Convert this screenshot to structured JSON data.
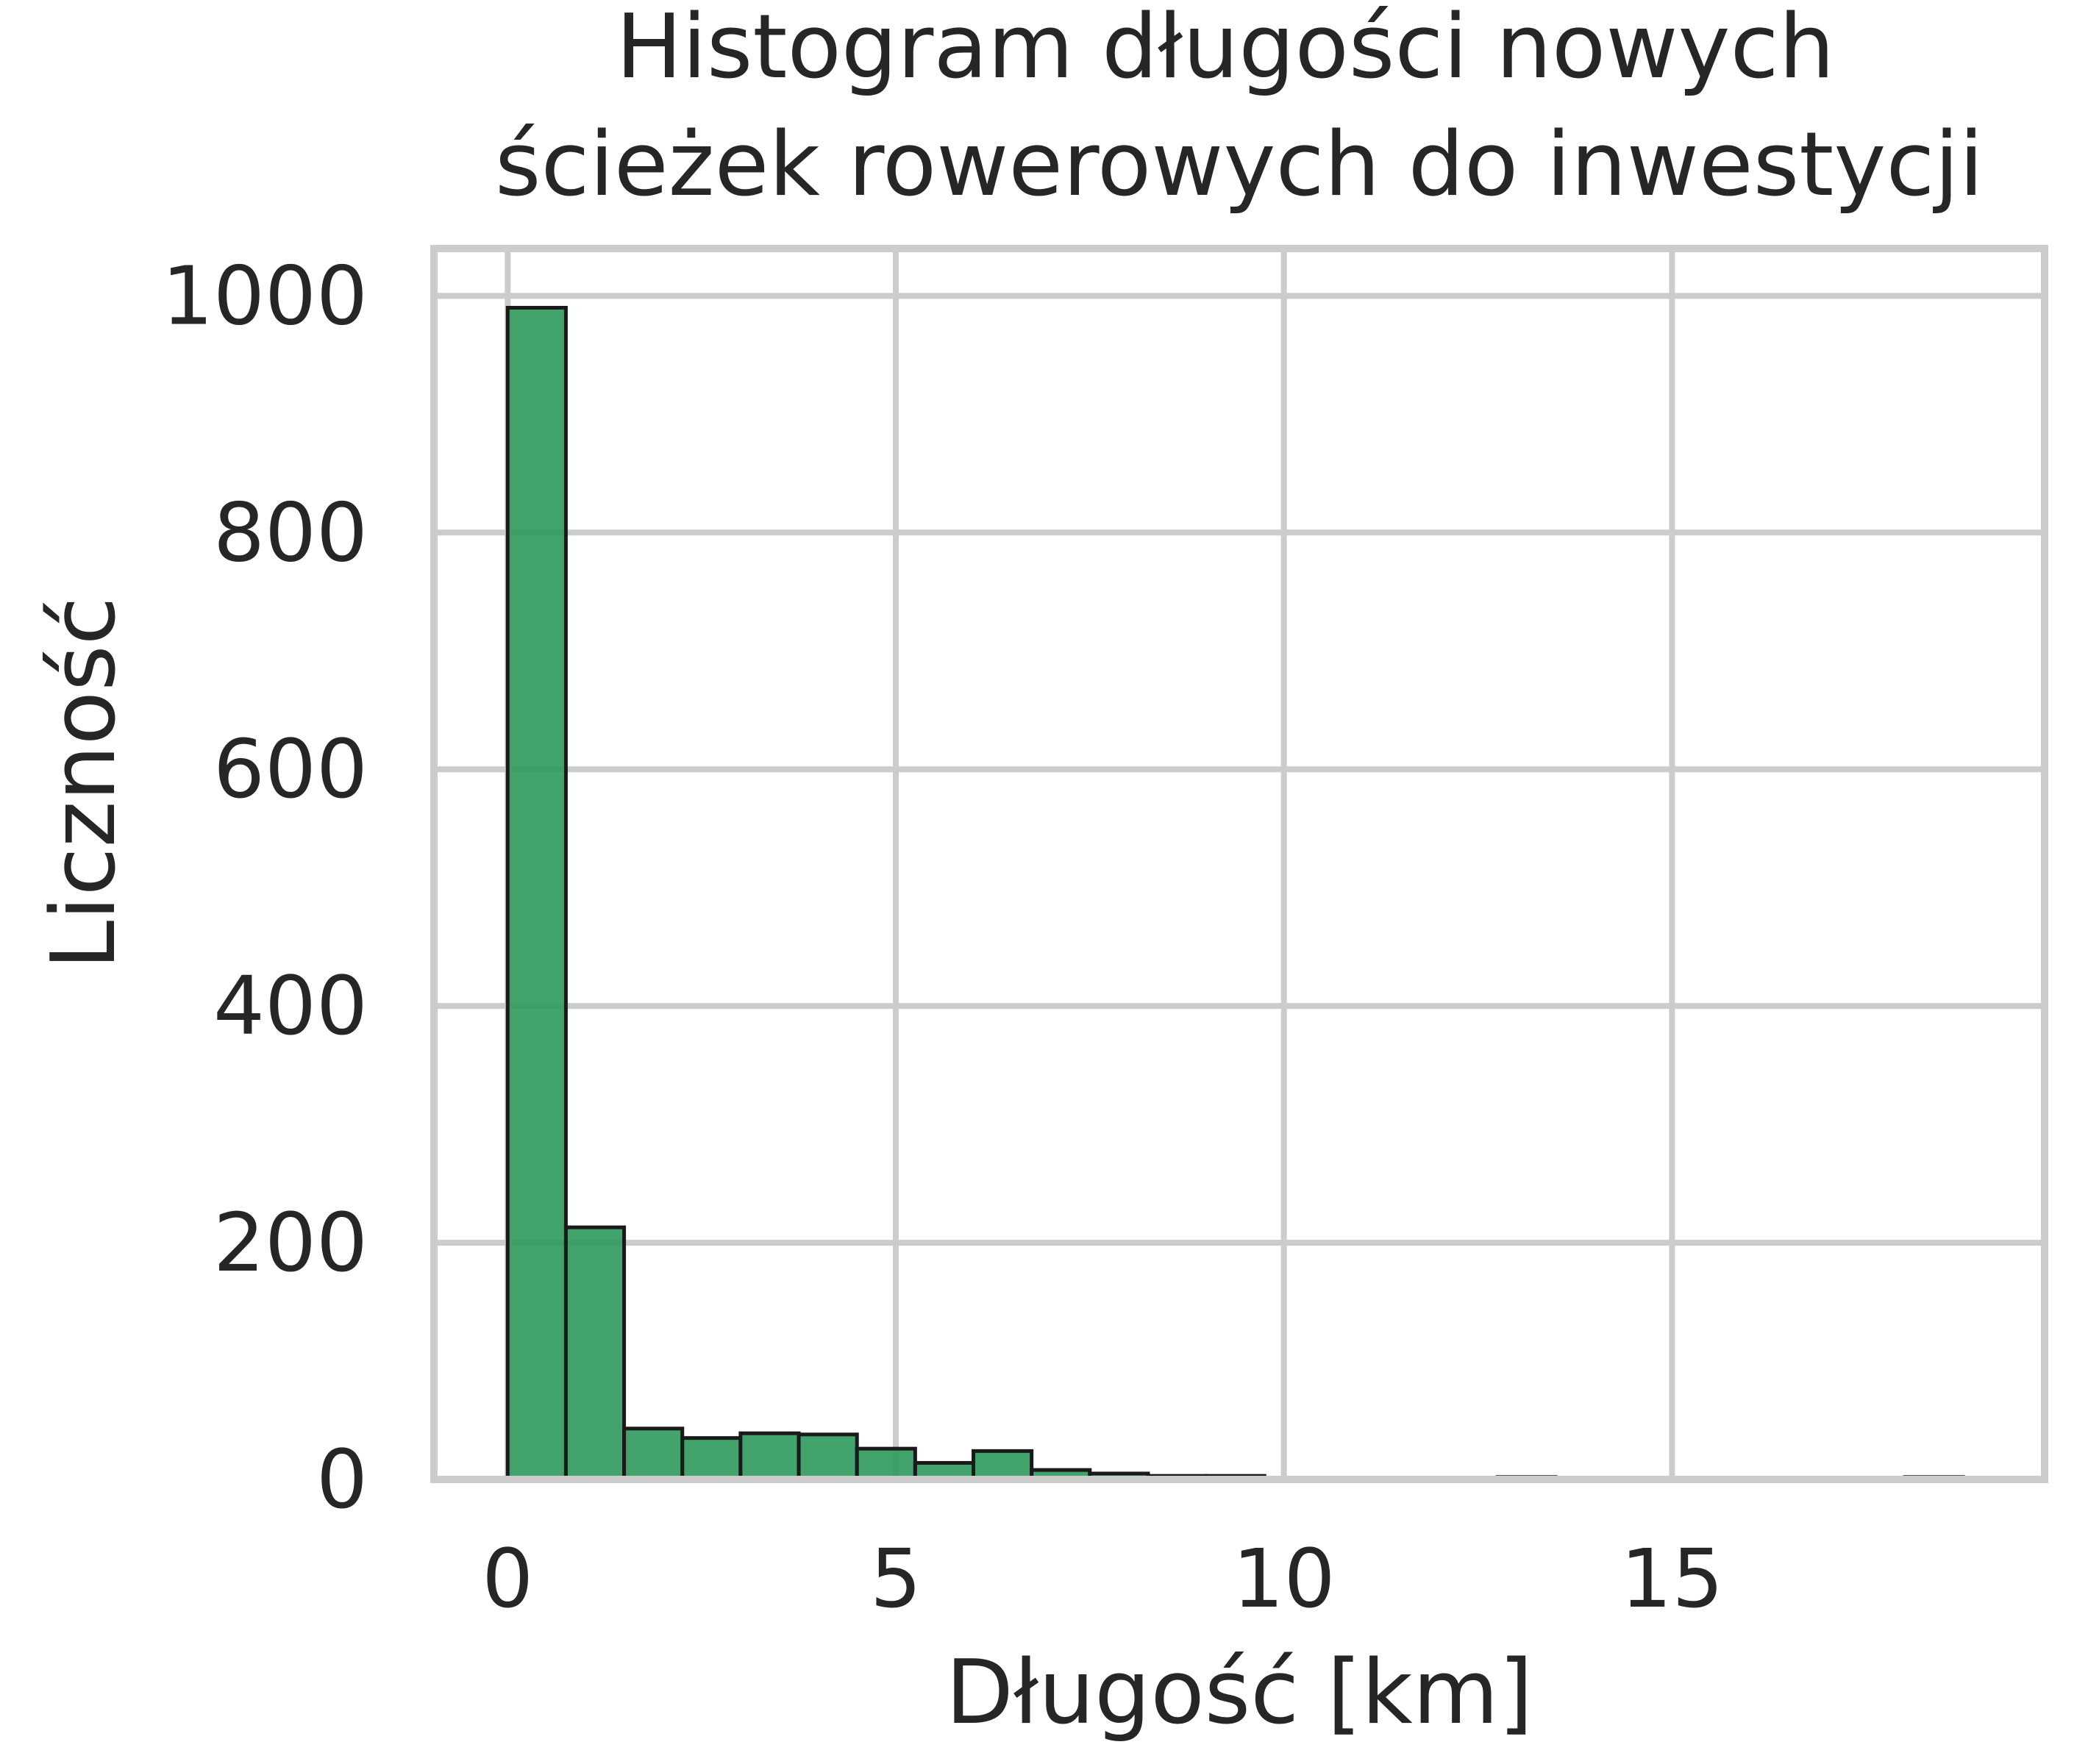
{
  "chart_data": {
    "type": "bar",
    "title": "Histogram długości nowych\nścieżek rowerowych do inwestycji",
    "title_lines": [
      "Histogram długości nowych",
      "ścieżek rowerowych do inwestycji"
    ],
    "xlabel": "Długość [km]",
    "ylabel": "Liczność",
    "xlim": [
      -0.95,
      19.8
    ],
    "ylim": [
      0,
      1040
    ],
    "xticks": [
      0,
      5,
      10,
      15
    ],
    "xtick_labels": [
      "0",
      "5",
      "10",
      "15"
    ],
    "yticks": [
      0,
      200,
      400,
      600,
      800,
      1000
    ],
    "ytick_labels": [
      "0",
      "200",
      "400",
      "600",
      "800",
      "1000"
    ],
    "grid": true,
    "legend": "none",
    "bar_color": "#2e9a5c",
    "edge_color": "#1a1a1a",
    "bins": [
      {
        "x0": 0.0,
        "x1": 0.75,
        "count": 990
      },
      {
        "x0": 0.75,
        "x1": 1.5,
        "count": 213
      },
      {
        "x0": 1.5,
        "x1": 2.25,
        "count": 43
      },
      {
        "x0": 2.25,
        "x1": 3.0,
        "count": 35
      },
      {
        "x0": 3.0,
        "x1": 3.75,
        "count": 39
      },
      {
        "x0": 3.75,
        "x1": 4.5,
        "count": 38
      },
      {
        "x0": 4.5,
        "x1": 5.25,
        "count": 26
      },
      {
        "x0": 5.25,
        "x1": 6.0,
        "count": 14
      },
      {
        "x0": 6.0,
        "x1": 6.75,
        "count": 24
      },
      {
        "x0": 6.75,
        "x1": 7.5,
        "count": 8
      },
      {
        "x0": 7.5,
        "x1": 8.25,
        "count": 5
      },
      {
        "x0": 8.25,
        "x1": 9.0,
        "count": 3
      },
      {
        "x0": 9.0,
        "x1": 9.75,
        "count": 3
      },
      {
        "x0": 12.75,
        "x1": 13.5,
        "count": 2
      },
      {
        "x0": 18.0,
        "x1": 18.75,
        "count": 2
      }
    ]
  }
}
